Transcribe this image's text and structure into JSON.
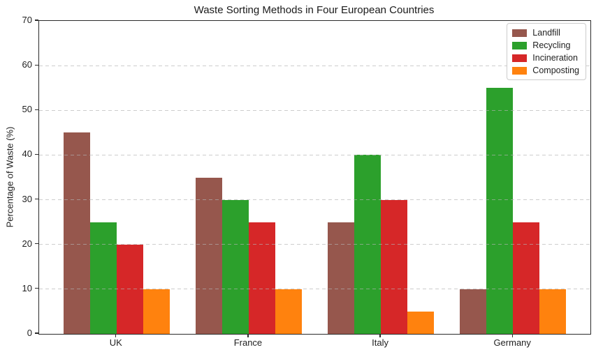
{
  "chart_data": {
    "type": "bar",
    "title": "Waste Sorting Methods in Four European Countries",
    "xlabel": "",
    "ylabel": "Percentage of Waste (%)",
    "categories": [
      "UK",
      "France",
      "Italy",
      "Germany"
    ],
    "series": [
      {
        "name": "Landfill",
        "color": "#96574d",
        "values": [
          45,
          35,
          25,
          10
        ]
      },
      {
        "name": "Recycling",
        "color": "#2ca02c",
        "values": [
          25,
          30,
          40,
          55
        ]
      },
      {
        "name": "Incineration",
        "color": "#d62728",
        "values": [
          20,
          25,
          30,
          25
        ]
      },
      {
        "name": "Composting",
        "color": "#ff820e",
        "values": [
          10,
          10,
          5,
          10
        ]
      }
    ],
    "ylim": [
      0,
      70
    ],
    "yticks": [
      0,
      10,
      20,
      30,
      40,
      50,
      60,
      70
    ],
    "grid": "horizontal-dashed",
    "legend_position": "upper-right"
  }
}
